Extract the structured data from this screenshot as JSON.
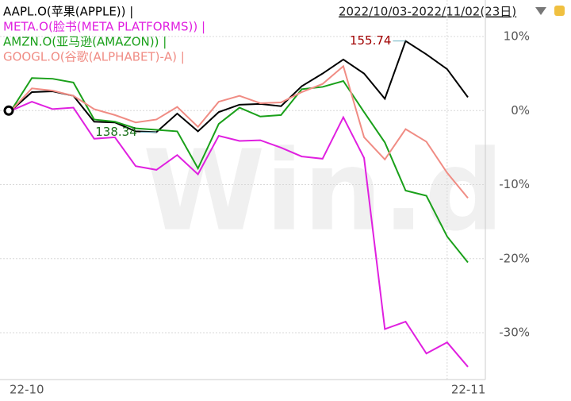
{
  "chart_data": {
    "type": "line",
    "header": "2022/10/03-2022/11/02(23日)",
    "watermark": "Win.d",
    "categories": [
      "22-10",
      null,
      null,
      null,
      null,
      null,
      null,
      null,
      null,
      null,
      null,
      null,
      null,
      null,
      null,
      null,
      null,
      null,
      null,
      null,
      null,
      "22-11",
      null
    ],
    "series": [
      {
        "name": "AAPL.O(苹果(APPLE)) |",
        "color": "#000000",
        "values": [
          0,
          2.5,
          2.6,
          2.0,
          -1.5,
          -1.6,
          -2.8,
          -2.9,
          -0.4,
          -2.8,
          -0.2,
          0.8,
          0.9,
          0.6,
          3.3,
          5.0,
          6.9,
          5.0,
          1.6,
          9.4,
          7.6,
          5.6,
          1.8
        ]
      },
      {
        "name": "META.O(脸书(META PLATFORMS)) |",
        "color": "#e020e0",
        "values": [
          0,
          1.2,
          0.2,
          0.4,
          -3.8,
          -3.6,
          -7.5,
          -8.0,
          -6.0,
          -8.6,
          -3.4,
          -4.1,
          -4.0,
          -5.0,
          -6.2,
          -6.5,
          -0.9,
          -6.4,
          -29.5,
          -28.5,
          -32.8,
          -31.3,
          -34.6
        ]
      },
      {
        "name": "AMZN.O(亚马逊(AMAZON)) |",
        "color": "#1aa01a",
        "values": [
          0,
          4.4,
          4.3,
          3.8,
          -1.2,
          -1.5,
          -2.4,
          -2.6,
          -2.8,
          -7.8,
          -1.8,
          0.4,
          -0.8,
          -0.6,
          2.9,
          3.2,
          4.0,
          -0.2,
          -4.3,
          -10.8,
          -11.5,
          -17.0,
          -20.5
        ]
      },
      {
        "name": "GOOGL.O(谷歌(ALPHABET)-A) |",
        "color": "#f08c84",
        "values": [
          0,
          3.0,
          2.7,
          2.0,
          0.2,
          -0.6,
          -1.6,
          -1.2,
          0.5,
          -2.2,
          1.2,
          2.0,
          1.0,
          1.1,
          2.5,
          3.6,
          6.0,
          -3.6,
          -6.6,
          -2.5,
          -4.2,
          -8.4,
          -11.8
        ]
      }
    ],
    "annotations": [
      "155.74",
      "138.34"
    ],
    "ylim": [
      -36,
      14.4
    ],
    "yticks": [
      {
        "value": 10,
        "label": "10%"
      },
      {
        "value": 0,
        "label": "0%"
      },
      {
        "value": -10,
        "label": "-10%"
      },
      {
        "value": -20,
        "label": "-20%"
      },
      {
        "value": -30,
        "label": "-30%"
      }
    ],
    "grid": true
  }
}
